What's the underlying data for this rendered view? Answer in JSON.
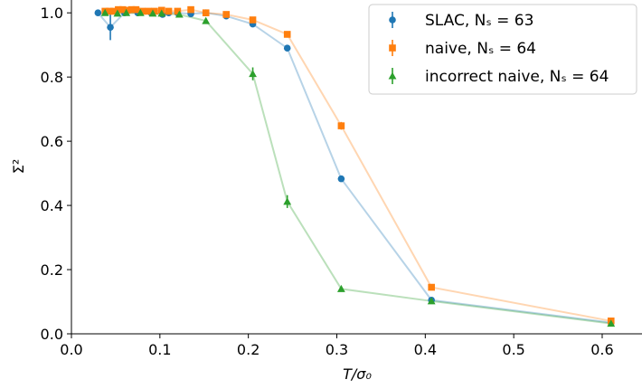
{
  "chart_data": {
    "type": "line",
    "xlabel": "T/σ₀",
    "ylabel": "Σ²",
    "xlim": [
      0.0,
      0.645
    ],
    "ylim": [
      0.0,
      1.04
    ],
    "x_ticks": [
      "0.0",
      "0.1",
      "0.2",
      "0.3",
      "0.4",
      "0.5",
      "0.6"
    ],
    "y_ticks": [
      "0.0",
      "0.2",
      "0.4",
      "0.6",
      "0.8",
      "1.0"
    ],
    "grid": false,
    "legend_position": "top-right",
    "series": [
      {
        "name": "SLAC, Nₛ = 63",
        "marker": "circle",
        "color": "#1f77b4",
        "x": [
          0.03,
          0.044,
          0.06,
          0.075,
          0.09,
          0.103,
          0.11,
          0.12,
          0.135,
          0.152,
          0.175,
          0.205,
          0.244,
          0.305,
          0.407,
          0.61
        ],
        "y": [
          1.0,
          0.955,
          1.0,
          1.0,
          1.0,
          0.995,
          1.0,
          1.0,
          0.997,
          1.0,
          0.99,
          0.965,
          0.89,
          0.483,
          0.105,
          0.035
        ],
        "err": [
          0.0,
          0.04,
          0.0,
          0.0,
          0.0,
          0.0,
          0.0,
          0.0,
          0.0,
          0.0,
          0.0,
          0.0,
          0.0,
          0.0,
          0.0,
          0.0
        ]
      },
      {
        "name": "naive, Nₛ = 64",
        "marker": "square",
        "color": "#ff7f0e",
        "x": [
          0.038,
          0.043,
          0.048,
          0.053,
          0.058,
          0.063,
          0.068,
          0.073,
          0.08,
          0.087,
          0.094,
          0.102,
          0.11,
          0.12,
          0.135,
          0.152,
          0.175,
          0.205,
          0.244,
          0.305,
          0.407,
          0.61
        ],
        "y": [
          1.005,
          1.005,
          1.005,
          1.01,
          1.01,
          1.008,
          1.01,
          1.01,
          1.005,
          1.005,
          1.005,
          1.008,
          1.005,
          1.005,
          1.01,
          1.0,
          0.995,
          0.978,
          0.933,
          0.648,
          0.145,
          0.04
        ],
        "err": [
          0.008,
          0.008,
          0.008,
          0.008,
          0.008,
          0.008,
          0.008,
          0.008,
          0.008,
          0.008,
          0.008,
          0.008,
          0.008,
          0.008,
          0.008,
          0.008,
          0.008,
          0.008,
          0.008,
          0.012,
          0.005,
          0.005
        ]
      },
      {
        "name": "incorrect naive, Nₛ = 64",
        "marker": "triangle",
        "color": "#2ca02c",
        "x": [
          0.038,
          0.052,
          0.062,
          0.078,
          0.092,
          0.102,
          0.122,
          0.152,
          0.205,
          0.244,
          0.305,
          0.407,
          0.61
        ],
        "y": [
          1.0,
          0.998,
          1.0,
          1.0,
          0.998,
          0.998,
          0.995,
          0.975,
          0.81,
          0.412,
          0.14,
          0.102,
          0.032
        ],
        "err": [
          0.0,
          0.0,
          0.0,
          0.0,
          0.0,
          0.0,
          0.0,
          0.008,
          0.02,
          0.02,
          0.0,
          0.0,
          0.0
        ]
      }
    ]
  }
}
